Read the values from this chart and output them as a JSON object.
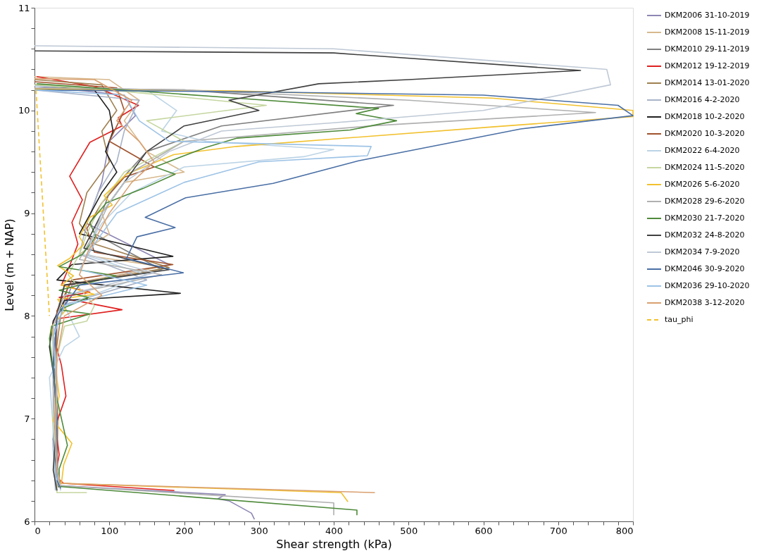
{
  "chart_data": {
    "type": "line",
    "xlabel": "Shear strength (kPa)",
    "ylabel": "Level (m + NAP)",
    "xlim": [
      0,
      800
    ],
    "ylim": [
      6,
      11
    ],
    "xticks": [
      0,
      {
        "value": 20,
        "label": null
      },
      {
        "value": 40,
        "label": null
      },
      {
        "value": 60,
        "label": null
      },
      {
        "value": 80,
        "label": null
      },
      100,
      {
        "value": 120,
        "label": null
      },
      {
        "value": 140,
        "label": null
      },
      {
        "value": 160,
        "label": null
      },
      {
        "value": 180,
        "label": null
      },
      200,
      {
        "value": 220,
        "label": null
      },
      {
        "value": 240,
        "label": null
      },
      {
        "value": 260,
        "label": null
      },
      {
        "value": 280,
        "label": null
      },
      300,
      {
        "value": 320,
        "label": null
      },
      {
        "value": 340,
        "label": null
      },
      {
        "value": 360,
        "label": null
      },
      {
        "value": 380,
        "label": null
      },
      400,
      {
        "value": 420,
        "label": null
      },
      {
        "value": 440,
        "label": null
      },
      {
        "value": 460,
        "label": null
      },
      {
        "value": 480,
        "label": null
      },
      500,
      {
        "value": 520,
        "label": null
      },
      {
        "value": 540,
        "label": null
      },
      {
        "value": 560,
        "label": null
      },
      {
        "value": 580,
        "label": null
      },
      600,
      {
        "value": 620,
        "label": null
      },
      {
        "value": 640,
        "label": null
      },
      {
        "value": 660,
        "label": null
      },
      {
        "value": 680,
        "label": null
      },
      700,
      {
        "value": 720,
        "label": null
      },
      {
        "value": 740,
        "label": null
      },
      {
        "value": 760,
        "label": null
      },
      {
        "value": 780,
        "label": null
      },
      800
    ],
    "yticks": [
      6,
      {
        "value": 6.2,
        "label": null
      },
      {
        "value": 6.4,
        "label": null
      },
      {
        "value": 6.6,
        "label": null
      },
      {
        "value": 6.8,
        "label": null
      },
      7,
      {
        "value": 7.2,
        "label": null
      },
      {
        "value": 7.4,
        "label": null
      },
      {
        "value": 7.6,
        "label": null
      },
      {
        "value": 7.8,
        "label": null
      },
      8,
      {
        "value": 8.2,
        "label": null
      },
      {
        "value": 8.4,
        "label": null
      },
      {
        "value": 8.6,
        "label": null
      },
      {
        "value": 8.8,
        "label": null
      },
      9,
      {
        "value": 9.2,
        "label": null
      },
      {
        "value": 9.4,
        "label": null
      },
      {
        "value": 9.6,
        "label": null
      },
      {
        "value": 9.8,
        "label": null
      },
      10,
      {
        "value": 10.2,
        "label": null
      },
      {
        "value": 10.4,
        "label": null
      },
      {
        "value": 10.6,
        "label": null
      },
      {
        "value": 10.8,
        "label": null
      },
      11
    ],
    "grid": false,
    "legend": "right",
    "marker": "none",
    "series": [
      {
        "name": "DKM2006 31-10-2019",
        "color": "#8e86b5",
        "x": [
          0,
          120,
          135,
          100,
          90,
          70,
          180,
          50,
          30,
          28,
          30,
          30,
          255,
          245,
          260,
          290,
          294
        ],
        "values": [
          10.24,
          10.15,
          9.95,
          9.7,
          9.3,
          8.9,
          8.5,
          8.3,
          7.9,
          7.3,
          6.7,
          6.35,
          6.26,
          6.22,
          6.2,
          6.08,
          6.02
        ]
      },
      {
        "name": "DKM2008 15-11-2019",
        "color": "#d7b98e",
        "x": [
          0,
          100,
          140,
          120,
          150,
          200,
          120,
          90,
          100,
          60,
          170,
          40,
          30,
          28,
          32,
          30,
          35
        ],
        "values": [
          10.33,
          10.3,
          10.1,
          9.9,
          9.6,
          9.4,
          9.3,
          9.0,
          8.8,
          8.6,
          8.48,
          8.3,
          8.0,
          7.5,
          7.0,
          6.5,
          6.35
        ]
      },
      {
        "name": "DKM2010 29-11-2019",
        "color": "#7f7f7f",
        "x": [
          0,
          200,
          480,
          250,
          150,
          100,
          80,
          170,
          40,
          25,
          28,
          30,
          33
        ],
        "values": [
          10.22,
          10.2,
          10.05,
          9.85,
          9.6,
          9.2,
          8.8,
          8.45,
          8.3,
          7.9,
          7.2,
          6.6,
          6.33
        ]
      },
      {
        "name": "DKM2012 19-12-2019",
        "color": "#e02020",
        "x": [
          3,
          82,
          139,
          112,
          117,
          74,
          47,
          64,
          50,
          58,
          47,
          36,
          74,
          33,
          117,
          28,
          23,
          36,
          42,
          28,
          33,
          28,
          39,
          187
        ],
        "values": [
          10.33,
          10.23,
          10.05,
          9.93,
          9.85,
          9.69,
          9.36,
          9.13,
          8.91,
          8.7,
          8.49,
          8.3,
          8.23,
          8.18,
          8.06,
          7.97,
          7.87,
          7.52,
          7.22,
          6.93,
          6.65,
          6.44,
          6.37,
          6.3
        ]
      },
      {
        "name": "DKM2014 13-01-2020",
        "color": "#a08050",
        "x": [
          0,
          90,
          110,
          90,
          100,
          70,
          60,
          80,
          180,
          45,
          35,
          28,
          30,
          28,
          32
        ],
        "values": [
          10.3,
          10.25,
          10.0,
          9.8,
          9.5,
          9.2,
          8.9,
          8.7,
          8.47,
          8.3,
          8.0,
          7.6,
          7.0,
          6.5,
          6.33
        ]
      },
      {
        "name": "DKM2016 4-2-2020",
        "color": "#a9b4c8",
        "x": [
          0,
          140,
          120,
          110,
          85,
          70,
          60,
          150,
          35,
          25,
          25,
          25,
          28
        ],
        "values": [
          10.2,
          10.1,
          9.8,
          9.5,
          9.2,
          8.9,
          8.6,
          8.35,
          8.1,
          7.8,
          7.2,
          6.7,
          6.3
        ]
      },
      {
        "name": "DKM2018 10-2-2020",
        "color": "#202020",
        "x": [
          0,
          80,
          100,
          105,
          95,
          110,
          90,
          75,
          60,
          185,
          50,
          30,
          195,
          40,
          25,
          20,
          30,
          25,
          30
        ],
        "values": [
          10.25,
          10.2,
          10.0,
          9.8,
          9.6,
          9.4,
          9.2,
          9.0,
          8.8,
          8.58,
          8.5,
          8.35,
          8.22,
          8.15,
          7.95,
          7.7,
          7.2,
          6.8,
          6.4
        ]
      },
      {
        "name": "DKM2020 10-3-2020",
        "color": "#a0522d",
        "x": [
          0,
          110,
          120,
          100,
          160,
          120,
          90,
          70,
          80,
          185,
          50,
          30,
          28,
          30,
          30,
          33
        ],
        "values": [
          10.28,
          10.22,
          10.0,
          9.7,
          9.45,
          9.35,
          9.1,
          8.85,
          8.62,
          8.5,
          8.35,
          8.05,
          7.6,
          7.1,
          6.6,
          6.35
        ]
      },
      {
        "name": "DKM2022 6-4-2020",
        "color": "#bcd4e6",
        "x": [
          0,
          150,
          190,
          170,
          230,
          400,
          360,
          200,
          130,
          90,
          65,
          150,
          40,
          60,
          40,
          20,
          25,
          28,
          30
        ],
        "values": [
          10.24,
          10.2,
          10.0,
          9.8,
          9.7,
          9.62,
          9.55,
          9.45,
          9.2,
          8.9,
          8.6,
          8.4,
          8.1,
          7.8,
          7.7,
          7.4,
          6.9,
          6.4,
          6.3
        ]
      },
      {
        "name": "DKM2024 11-5-2020",
        "color": "#c5d6a0",
        "x": [
          0,
          100,
          310,
          150,
          200,
          120,
          90,
          70,
          60,
          45,
          80,
          70,
          40,
          30,
          25,
          30,
          30,
          70
        ],
        "values": [
          10.25,
          10.2,
          10.05,
          9.9,
          9.7,
          9.4,
          9.1,
          8.8,
          8.6,
          8.4,
          8.1,
          7.95,
          7.9,
          7.6,
          7.0,
          6.5,
          6.28,
          6.28
        ]
      },
      {
        "name": "DKM2026 5-6-2020",
        "color": "#f2c12e",
        "x": [
          0,
          270,
          612,
          800,
          800,
          612,
          270,
          186,
          123,
          93,
          104,
          74,
          60,
          66,
          47,
          31,
          52,
          36,
          80,
          31,
          42,
          23,
          28,
          33,
          25,
          50,
          39,
          36,
          410,
          419
        ],
        "values": [
          10.21,
          10.19,
          10.12,
          10.0,
          9.94,
          9.84,
          9.65,
          9.57,
          9.38,
          9.17,
          9.08,
          8.96,
          8.77,
          8.7,
          8.56,
          8.49,
          8.39,
          8.3,
          8.21,
          8.16,
          8.06,
          7.9,
          7.5,
          7.22,
          6.98,
          6.76,
          6.55,
          6.37,
          6.28,
          6.19
        ]
      },
      {
        "name": "DKM2028 29-6-2020",
        "color": "#b0b0b0",
        "x": [
          0,
          200,
          500,
          750,
          450,
          200,
          130,
          100,
          80,
          60,
          170,
          40,
          25,
          25,
          28,
          30,
          400,
          400
        ],
        "values": [
          10.22,
          10.2,
          10.1,
          9.98,
          9.85,
          9.7,
          9.4,
          9.1,
          8.8,
          8.55,
          8.4,
          8.2,
          7.9,
          7.3,
          6.8,
          6.35,
          6.18,
          6.06
        ]
      },
      {
        "name": "DKM2030 21-7-2020",
        "color": "#4e8a3a",
        "x": [
          3,
          270,
          460,
          430,
          484,
          422,
          270,
          229,
          161,
          188,
          145,
          96,
          74,
          82,
          64,
          33,
          109,
          33,
          72,
          33,
          74,
          23,
          20,
          28,
          44,
          33,
          33,
          431,
          431
        ],
        "values": [
          10.26,
          10.12,
          10.02,
          9.97,
          9.9,
          9.81,
          9.73,
          9.64,
          9.45,
          9.38,
          9.24,
          9.1,
          8.91,
          8.77,
          8.6,
          8.48,
          8.39,
          8.25,
          8.18,
          8.06,
          8.02,
          7.9,
          7.78,
          7.26,
          6.74,
          6.51,
          6.34,
          6.11,
          6.06
        ]
      },
      {
        "name": "DKM2032 24-8-2020",
        "color": "#404040",
        "x": [
          0,
          400,
          730,
          500,
          380,
          260,
          300,
          200,
          150,
          120,
          90,
          66,
          180,
          40,
          30,
          25,
          30,
          25,
          30
        ],
        "values": [
          10.58,
          10.56,
          10.39,
          10.3,
          10.26,
          10.1,
          10.0,
          9.85,
          9.6,
          9.3,
          9.0,
          8.66,
          8.45,
          8.3,
          8.0,
          7.5,
          7.0,
          6.5,
          6.3
        ]
      },
      {
        "name": "DKM2034 7-9-2020",
        "color": "#bfc9d6",
        "x": [
          0,
          400,
          765,
          770,
          600,
          400,
          250,
          180,
          120,
          90,
          70,
          160,
          40,
          25,
          30,
          28,
          32,
          35
        ],
        "values": [
          10.63,
          10.6,
          10.4,
          10.25,
          10.0,
          9.88,
          9.8,
          9.6,
          9.3,
          9.0,
          8.6,
          8.42,
          8.2,
          7.9,
          7.4,
          6.9,
          6.4,
          6.3
        ]
      },
      {
        "name": "DKM2046 30-9-2020",
        "color": "#4a6fa5",
        "x": [
          0,
          300,
          600,
          780,
          800,
          650,
          433,
          319,
          202,
          148,
          188,
          137,
          123,
          199,
          60,
          30,
          25,
          30,
          30,
          35
        ],
        "values": [
          10.2,
          10.18,
          10.15,
          10.05,
          9.95,
          9.82,
          9.51,
          9.29,
          9.15,
          8.96,
          8.86,
          8.77,
          8.56,
          8.42,
          8.3,
          8.0,
          7.5,
          7.0,
          6.4,
          6.32
        ]
      },
      {
        "name": "DKM2036 29-10-2020",
        "color": "#9dc3e6",
        "x": [
          0,
          120,
          140,
          180,
          450,
          445,
          300,
          200,
          110,
          80,
          60,
          150,
          40,
          25,
          30,
          28,
          30
        ],
        "values": [
          10.2,
          10.15,
          9.9,
          9.7,
          9.65,
          9.56,
          9.5,
          9.3,
          9.0,
          8.7,
          8.45,
          8.3,
          8.1,
          7.8,
          7.3,
          6.8,
          6.4
        ]
      },
      {
        "name": "DKM2038 3-12-2020",
        "color": "#d9a070",
        "x": [
          0,
          80,
          130,
          110,
          140,
          160,
          130,
          100,
          85,
          70,
          60,
          90,
          40,
          30,
          28,
          30,
          35,
          455
        ],
        "values": [
          10.31,
          10.3,
          10.1,
          9.9,
          9.7,
          9.5,
          9.3,
          9.0,
          8.8,
          8.6,
          8.4,
          8.2,
          8.0,
          7.6,
          7.0,
          6.5,
          6.37,
          6.28
        ]
      },
      {
        "name": "tau_phi",
        "color": "#f2c12e",
        "line_style": "dashed",
        "x": [
          2,
          20
        ],
        "values": [
          10.2,
          8.0
        ]
      }
    ]
  }
}
